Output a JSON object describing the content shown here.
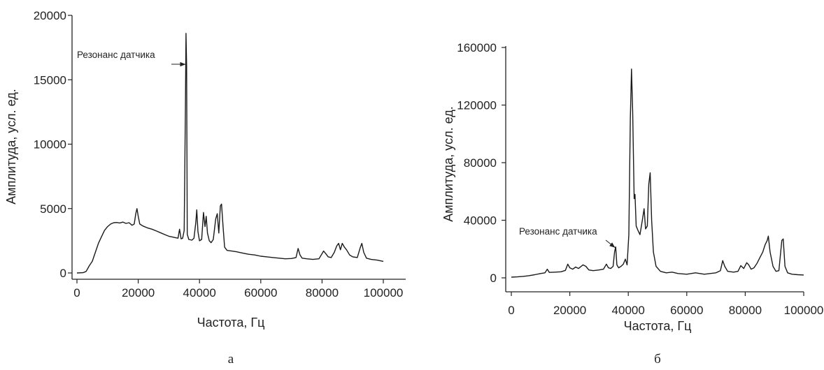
{
  "chart_data": [
    {
      "type": "line",
      "panel_label": "а",
      "xlabel": "Частота, Гц",
      "ylabel": "Амплитуда, усл. ед.",
      "xlim": [
        0,
        100000
      ],
      "ylim": [
        0,
        20000
      ],
      "x_ticks": [
        "0",
        "20000",
        "40000",
        "60000",
        "80000",
        "100000"
      ],
      "y_ticks": [
        "0",
        "5000",
        "10000",
        "15000",
        "20000"
      ],
      "annotation": {
        "text": "Резонанс датчика",
        "x": 35500,
        "y": 16200
      },
      "series": [
        {
          "points": [
            [
              0,
              0
            ],
            [
              2000,
              20
            ],
            [
              3000,
              120
            ],
            [
              4000,
              550
            ],
            [
              5000,
              900
            ],
            [
              6000,
              1600
            ],
            [
              7000,
              2300
            ],
            [
              8000,
              2800
            ],
            [
              9000,
              3300
            ],
            [
              10000,
              3600
            ],
            [
              11000,
              3800
            ],
            [
              12000,
              3900
            ],
            [
              13000,
              3920
            ],
            [
              14000,
              3880
            ],
            [
              15000,
              3950
            ],
            [
              16000,
              3850
            ],
            [
              17000,
              3900
            ],
            [
              18000,
              3700
            ],
            [
              18700,
              3800
            ],
            [
              19200,
              4600
            ],
            [
              19600,
              5000
            ],
            [
              20000,
              4400
            ],
            [
              20500,
              3800
            ],
            [
              21500,
              3650
            ],
            [
              23000,
              3500
            ],
            [
              24500,
              3400
            ],
            [
              26000,
              3250
            ],
            [
              27500,
              3100
            ],
            [
              29000,
              2950
            ],
            [
              30000,
              2850
            ],
            [
              31000,
              2800
            ],
            [
              32000,
              2750
            ],
            [
              33000,
              2700
            ],
            [
              33500,
              3400
            ],
            [
              34000,
              2650
            ],
            [
              34500,
              2700
            ],
            [
              35000,
              3300
            ],
            [
              35400,
              13000
            ],
            [
              35600,
              18600
            ],
            [
              35800,
              16000
            ],
            [
              36000,
              3000
            ],
            [
              36500,
              2600
            ],
            [
              37500,
              2550
            ],
            [
              38200,
              2700
            ],
            [
              38800,
              3900
            ],
            [
              39100,
              4900
            ],
            [
              39500,
              3200
            ],
            [
              40000,
              2500
            ],
            [
              40700,
              2600
            ],
            [
              41300,
              4700
            ],
            [
              41800,
              3600
            ],
            [
              42200,
              4400
            ],
            [
              42600,
              3100
            ],
            [
              43200,
              2500
            ],
            [
              43800,
              2350
            ],
            [
              44500,
              2600
            ],
            [
              45300,
              4200
            ],
            [
              45800,
              4600
            ],
            [
              46300,
              3100
            ],
            [
              46800,
              5200
            ],
            [
              47200,
              5350
            ],
            [
              47700,
              3600
            ],
            [
              48200,
              2000
            ],
            [
              49000,
              1750
            ],
            [
              50500,
              1700
            ],
            [
              52000,
              1650
            ],
            [
              54000,
              1550
            ],
            [
              56000,
              1450
            ],
            [
              58000,
              1400
            ],
            [
              60000,
              1300
            ],
            [
              62000,
              1250
            ],
            [
              64000,
              1200
            ],
            [
              66000,
              1150
            ],
            [
              68000,
              1100
            ],
            [
              70000,
              1120
            ],
            [
              71500,
              1200
            ],
            [
              72200,
              1900
            ],
            [
              72800,
              1400
            ],
            [
              73500,
              1150
            ],
            [
              75000,
              1100
            ],
            [
              77000,
              1050
            ],
            [
              79000,
              1100
            ],
            [
              80500,
              1700
            ],
            [
              81200,
              1500
            ],
            [
              82000,
              1250
            ],
            [
              83000,
              1200
            ],
            [
              84000,
              1600
            ],
            [
              84800,
              2100
            ],
            [
              85400,
              2300
            ],
            [
              86000,
              1800
            ],
            [
              86600,
              2300
            ],
            [
              87300,
              2000
            ],
            [
              88000,
              1800
            ],
            [
              89000,
              1400
            ],
            [
              90000,
              1250
            ],
            [
              91500,
              1200
            ],
            [
              92500,
              2000
            ],
            [
              93000,
              2300
            ],
            [
              93600,
              1600
            ],
            [
              94500,
              1150
            ],
            [
              96000,
              1050
            ],
            [
              98000,
              1000
            ],
            [
              100000,
              900
            ]
          ]
        }
      ]
    },
    {
      "type": "line",
      "panel_label": "б",
      "xlabel": "Частота, Гц",
      "ylabel": "Амплитуда, усл. ед.",
      "xlim": [
        0,
        100000
      ],
      "ylim": [
        0,
        160000
      ],
      "x_ticks": [
        "0",
        "20000",
        "40000",
        "60000",
        "80000",
        "100000"
      ],
      "y_ticks": [
        "0",
        "40000",
        "80000",
        "120000",
        "160000"
      ],
      "annotation": {
        "text": "Резонанс датчика",
        "x": 35500,
        "y": 21000
      },
      "series": [
        {
          "points": [
            [
              0,
              500
            ],
            [
              2000,
              700
            ],
            [
              4000,
              1000
            ],
            [
              6000,
              1500
            ],
            [
              8000,
              2200
            ],
            [
              10000,
              3000
            ],
            [
              11500,
              3500
            ],
            [
              12300,
              6000
            ],
            [
              13000,
              3800
            ],
            [
              15000,
              4000
            ],
            [
              17000,
              4200
            ],
            [
              18500,
              5200
            ],
            [
              19300,
              9500
            ],
            [
              20000,
              7000
            ],
            [
              21000,
              6000
            ],
            [
              22000,
              7500
            ],
            [
              23000,
              6500
            ],
            [
              24500,
              9000
            ],
            [
              25500,
              8000
            ],
            [
              26500,
              5500
            ],
            [
              28000,
              5000
            ],
            [
              30000,
              5500
            ],
            [
              31500,
              6000
            ],
            [
              32500,
              9500
            ],
            [
              33200,
              7000
            ],
            [
              34000,
              6500
            ],
            [
              34800,
              8000
            ],
            [
              35300,
              18000
            ],
            [
              35700,
              21500
            ],
            [
              36100,
              9000
            ],
            [
              36700,
              7000
            ],
            [
              37500,
              8000
            ],
            [
              38300,
              9500
            ],
            [
              39000,
              13000
            ],
            [
              39600,
              9000
            ],
            [
              40200,
              30000
            ],
            [
              40700,
              110000
            ],
            [
              41100,
              145000
            ],
            [
              41500,
              115000
            ],
            [
              42000,
              55000
            ],
            [
              42300,
              58000
            ],
            [
              42700,
              36000
            ],
            [
              43300,
              33000
            ],
            [
              44000,
              30000
            ],
            [
              44800,
              40000
            ],
            [
              45400,
              48000
            ],
            [
              45900,
              34000
            ],
            [
              46500,
              36000
            ],
            [
              47000,
              65000
            ],
            [
              47500,
              73000
            ],
            [
              48000,
              40000
            ],
            [
              48600,
              18000
            ],
            [
              49500,
              8000
            ],
            [
              51000,
              4500
            ],
            [
              53000,
              3500
            ],
            [
              55000,
              4000
            ],
            [
              57000,
              3000
            ],
            [
              60000,
              2500
            ],
            [
              63000,
              3500
            ],
            [
              66000,
              2500
            ],
            [
              68000,
              3000
            ],
            [
              70000,
              3500
            ],
            [
              71500,
              5000
            ],
            [
              72300,
              12000
            ],
            [
              73000,
              8000
            ],
            [
              74000,
              4500
            ],
            [
              76000,
              4000
            ],
            [
              77500,
              4500
            ],
            [
              78500,
              8500
            ],
            [
              79500,
              6500
            ],
            [
              80500,
              10500
            ],
            [
              81200,
              9000
            ],
            [
              82000,
              6000
            ],
            [
              83000,
              7000
            ],
            [
              84000,
              10000
            ],
            [
              85000,
              14000
            ],
            [
              86000,
              18000
            ],
            [
              86800,
              23000
            ],
            [
              87500,
              26000
            ],
            [
              87900,
              29000
            ],
            [
              88500,
              18000
            ],
            [
              89500,
              8000
            ],
            [
              90500,
              4500
            ],
            [
              91500,
              5000
            ],
            [
              92500,
              26000
            ],
            [
              93000,
              27000
            ],
            [
              93600,
              8000
            ],
            [
              94500,
              3500
            ],
            [
              96000,
              2500
            ],
            [
              98000,
              2200
            ],
            [
              100000,
              2000
            ]
          ]
        }
      ]
    }
  ]
}
